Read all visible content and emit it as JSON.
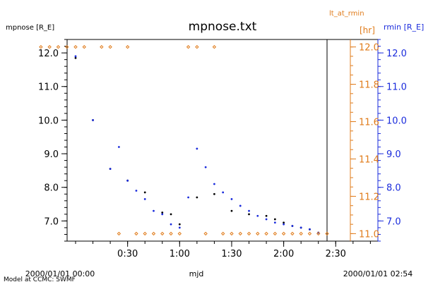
{
  "chart_data": {
    "type": "scatter",
    "title": "mpnose.txt",
    "xlabel": "mjd",
    "x_start_label": "2000/01/01 00:00",
    "x_end_label": "2000/01/01 02:54",
    "credit": "Model at CCMC: SWMF",
    "x_range_minutes": [
      0,
      174
    ],
    "x_ticks": [
      {
        "minute": 30,
        "label": "0:30"
      },
      {
        "minute": 60,
        "label": "1:00"
      },
      {
        "minute": 90,
        "label": "1:30"
      },
      {
        "minute": 120,
        "label": "2:00"
      },
      {
        "minute": 150,
        "label": "2:30"
      }
    ],
    "x_minor_step_minutes": 10,
    "x_data_end_minute": 145,
    "left_axis": {
      "label": "mpnose [R_E]",
      "range": [
        6.4,
        12.4
      ],
      "ticks": [
        7.0,
        8.0,
        9.0,
        10.0,
        11.0,
        12.0
      ],
      "tick_labels": [
        "7.0",
        "8.0",
        "9.0",
        "10.0",
        "11.0",
        "12.0"
      ],
      "minor_step": 0.2,
      "color": "#000000"
    },
    "right_axis_1": {
      "label_top": "lt_at_rmin",
      "label_unit": "[hr]",
      "range": [
        10.96,
        12.04
      ],
      "ticks": [
        11.0,
        11.2,
        11.4,
        11.6,
        11.8,
        12.0
      ],
      "tick_labels": [
        "11.0",
        "11.2",
        "11.4",
        "11.6",
        "11.8",
        "12.0"
      ],
      "minor_step": 0.05,
      "color": "#e07b1a"
    },
    "right_axis_2": {
      "label": "rmin [R_E]",
      "range": [
        6.4,
        12.4
      ],
      "ticks": [
        7.0,
        8.0,
        9.0,
        10.0,
        11.0,
        12.0
      ],
      "tick_labels": [
        "7.0",
        "8.0",
        "9.0",
        "10.0",
        "11.0",
        "12.0"
      ],
      "minor_step": 0.2,
      "color": "#1a2bdc"
    },
    "series": [
      {
        "name": "mpnose",
        "axis": "left",
        "color": "#000000",
        "x": [
          0,
          10,
          20,
          30,
          40,
          50,
          55,
          60,
          70,
          80,
          90,
          100,
          110,
          115,
          120,
          125,
          130,
          135,
          140
        ],
        "y": [
          11.85,
          10.0,
          8.55,
          8.2,
          7.85,
          7.25,
          7.2,
          6.9,
          7.7,
          7.8,
          7.3,
          7.2,
          7.15,
          7.05,
          6.95,
          6.85,
          6.8,
          6.75,
          6.65
        ]
      },
      {
        "name": "rmin",
        "axis": "right2",
        "color": "#1a2bdc",
        "x": [
          0,
          10,
          20,
          25,
          30,
          35,
          40,
          45,
          50,
          55,
          60,
          65,
          70,
          75,
          80,
          85,
          90,
          95,
          100,
          105,
          110,
          115,
          120,
          125,
          130,
          135,
          140
        ],
        "y": [
          11.9,
          10.0,
          8.55,
          9.2,
          8.2,
          7.9,
          7.65,
          7.3,
          7.2,
          6.9,
          6.8,
          7.7,
          9.15,
          8.6,
          8.1,
          7.85,
          7.65,
          7.45,
          7.3,
          7.15,
          7.05,
          6.95,
          6.9,
          6.85,
          6.8,
          6.75,
          6.65
        ]
      },
      {
        "name": "lt_at_rmin",
        "axis": "right1",
        "color": "#e07b1a",
        "x": [
          -20,
          -15,
          -10,
          -5,
          0,
          5,
          15,
          20,
          25,
          30,
          35,
          40,
          45,
          50,
          55,
          60,
          65,
          70,
          75,
          80,
          85,
          90,
          95,
          100,
          105,
          110,
          115,
          120,
          125,
          130,
          135,
          140,
          145
        ],
        "y": [
          12.0,
          12.0,
          12.0,
          12.0,
          12.0,
          12.0,
          12.0,
          12.0,
          11.0,
          12.0,
          11.0,
          11.0,
          11.0,
          11.0,
          11.0,
          11.0,
          12.0,
          12.0,
          11.0,
          12.0,
          11.0,
          11.0,
          11.0,
          11.0,
          11.0,
          11.0,
          11.0,
          11.0,
          11.0,
          11.0,
          11.0,
          11.0,
          11.0
        ]
      }
    ]
  }
}
